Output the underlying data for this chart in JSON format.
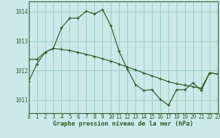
{
  "title": "Graphe pression niveau de la mer (hPa)",
  "bg_color": "#cce8e8",
  "grid_color": "#99ccbb",
  "line_color": "#2d5a27",
  "marker_color": "#2d5a27",
  "x_min": 0,
  "x_max": 23,
  "y_min": 1010.55,
  "y_max": 1014.35,
  "yticks": [
    1011,
    1012,
    1013,
    1014
  ],
  "series1_x": [
    0,
    1,
    2,
    3,
    4,
    5,
    6,
    7,
    8,
    9,
    10,
    11,
    12,
    13,
    14,
    15,
    16,
    17,
    18,
    19,
    20,
    21,
    22,
    23
  ],
  "series1_y": [
    1011.62,
    1012.22,
    1012.62,
    1012.75,
    1013.45,
    1013.78,
    1013.78,
    1014.02,
    1013.92,
    1014.07,
    1013.52,
    1012.65,
    1012.05,
    1011.52,
    1011.32,
    1011.35,
    1011.02,
    1010.82,
    1011.35,
    1011.35,
    1011.58,
    1011.32,
    1011.92,
    1011.88
  ],
  "series2_x": [
    0,
    1,
    2,
    3,
    4,
    5,
    6,
    7,
    8,
    9,
    10,
    11,
    12,
    13,
    14,
    15,
    16,
    17,
    18,
    19,
    20,
    21,
    22,
    23
  ],
  "series2_y": [
    1012.38,
    1012.38,
    1012.62,
    1012.75,
    1012.72,
    1012.68,
    1012.62,
    1012.55,
    1012.48,
    1012.4,
    1012.32,
    1012.22,
    1012.12,
    1012.02,
    1011.92,
    1011.82,
    1011.72,
    1011.62,
    1011.55,
    1011.5,
    1011.45,
    1011.4,
    1011.92,
    1011.88
  ],
  "xlabel_fontsize": 6.5,
  "title_fontsize": 6.5,
  "tick_fontsize": 5.5
}
